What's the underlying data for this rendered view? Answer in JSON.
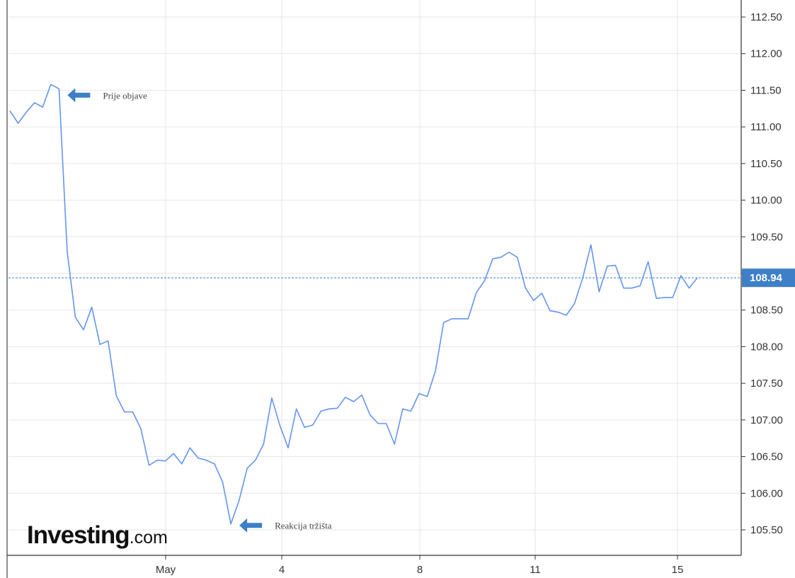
{
  "chart_data": {
    "type": "line",
    "x_tick_labels": [
      "May",
      "4",
      "8",
      "11",
      "15"
    ],
    "y_ticks": [
      "112.50",
      "112.00",
      "111.50",
      "111.00",
      "110.50",
      "110.00",
      "109.50",
      "108.50",
      "108.00",
      "107.50",
      "107.00",
      "106.50",
      "106.00",
      "105.50"
    ],
    "ylim": [
      105.37,
      112.62
    ],
    "current_price": "108.94",
    "current_value": 108.94,
    "grid": true,
    "series": [
      {
        "values": [
          111.22,
          111.05,
          111.2,
          111.33,
          111.27,
          111.58,
          111.52,
          109.3,
          108.4,
          108.23,
          108.54,
          108.03,
          108.08,
          107.33,
          107.11,
          107.11,
          106.88,
          106.38,
          106.45,
          106.44,
          106.54,
          106.4,
          106.62,
          106.48,
          106.45,
          106.4,
          106.15,
          105.58,
          105.9,
          106.34,
          106.45,
          106.67,
          107.3,
          106.92,
          106.62,
          107.15,
          106.9,
          106.93,
          107.12,
          107.15,
          107.16,
          107.31,
          107.25,
          107.34,
          107.07,
          106.95,
          106.95,
          106.67,
          107.15,
          107.12,
          107.36,
          107.32,
          107.67,
          108.33,
          108.38,
          108.38,
          108.38,
          108.74,
          108.9,
          109.2,
          109.22,
          109.29,
          109.22,
          108.8,
          108.63,
          108.73,
          108.49,
          108.47,
          108.43,
          108.59,
          108.94,
          109.39,
          108.75,
          109.1,
          109.11,
          108.8,
          108.8,
          108.83,
          109.16,
          108.66,
          108.67,
          108.67,
          108.97,
          108.8,
          108.94
        ],
        "color": "#6495ed"
      }
    ],
    "annotations": [
      {
        "id": "pre",
        "text": "Prije objave",
        "point_index": 6
      },
      {
        "id": "reaction",
        "text": "Reakcija tržišta",
        "point_index": 27
      }
    ]
  },
  "watermark": {
    "main": "Investing",
    "suffix": ".com"
  },
  "colors": {
    "line": "#6495ed",
    "grid": "#e6e6e6",
    "arrow": "#3e7fc8",
    "price_label": "#3e7fc8",
    "axis": "#333333"
  }
}
